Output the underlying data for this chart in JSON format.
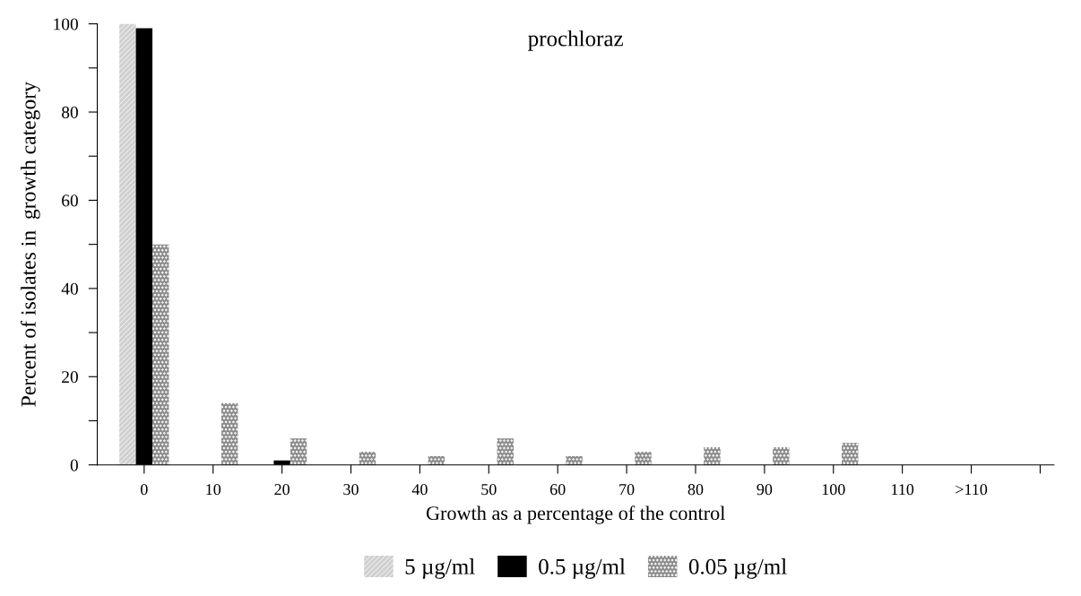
{
  "chart_data": {
    "type": "bar",
    "title": "prochloraz",
    "xlabel": "Growth as a percentage of the control",
    "ylabel": "Percent of isolates in  growth category",
    "categories": [
      "0",
      "10",
      "20",
      "30",
      "40",
      "50",
      "60",
      "70",
      "80",
      "90",
      "100",
      "110",
      ">110",
      null
    ],
    "series": [
      {
        "name": "5 µg/ml",
        "color": "#d0d0d0",
        "values": [
          100,
          null,
          null,
          null,
          null,
          null,
          null,
          null,
          null,
          null,
          null,
          null,
          null,
          null
        ]
      },
      {
        "name": "0.5 µg/ml",
        "color": "#000000",
        "values": [
          99,
          null,
          1,
          null,
          null,
          null,
          null,
          null,
          null,
          null,
          null,
          null,
          null,
          null
        ]
      },
      {
        "name": "0.05 µg/ml",
        "color": "#8c8c8c",
        "values": [
          50,
          14,
          6,
          3,
          2,
          6,
          2,
          3,
          4,
          4,
          5,
          null,
          null,
          null
        ]
      }
    ],
    "ylim": [
      0,
      100
    ],
    "yticks": [
      0,
      {
        "value": 10,
        "label": null
      },
      20,
      {
        "value": 30,
        "label": null
      },
      40,
      {
        "value": 50,
        "label": null
      },
      60,
      {
        "value": 70,
        "label": null
      },
      80,
      {
        "value": 90,
        "label": null
      },
      100
    ],
    "grid": false,
    "legend": "bottom"
  }
}
